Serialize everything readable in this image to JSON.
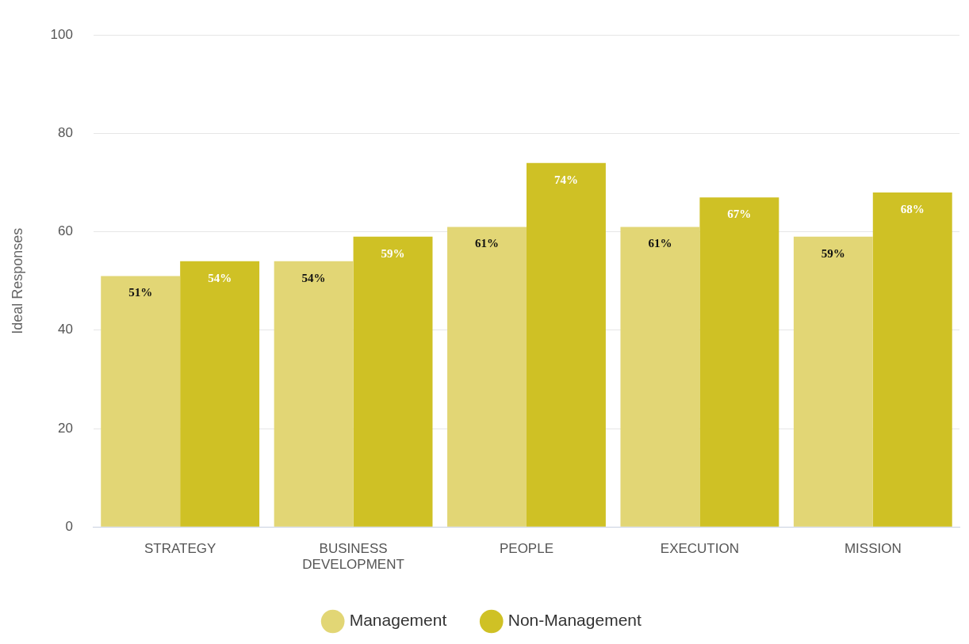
{
  "chart_data": {
    "type": "bar",
    "ylabel": "Ideal Responses",
    "categories": [
      "STRATEGY",
      "BUSINESS DEVELOPMENT",
      "PEOPLE",
      "EXECUTION",
      "MISSION"
    ],
    "series": [
      {
        "name": "Management",
        "color": "#e2d675",
        "values": [
          51,
          54,
          61,
          61,
          59
        ],
        "value_labels": [
          "51%",
          "54%",
          "61%",
          "61%",
          "59%"
        ]
      },
      {
        "name": "Non-Management",
        "color": "#cfc125",
        "values": [
          54,
          59,
          74,
          67,
          68
        ],
        "value_labels": [
          "54%",
          "59%",
          "74%",
          "67%",
          "68%"
        ]
      }
    ],
    "ylim": [
      0,
      100
    ],
    "yticks": [
      0,
      20,
      40,
      60,
      80,
      100
    ],
    "grid": "y",
    "legend": "bottom"
  }
}
